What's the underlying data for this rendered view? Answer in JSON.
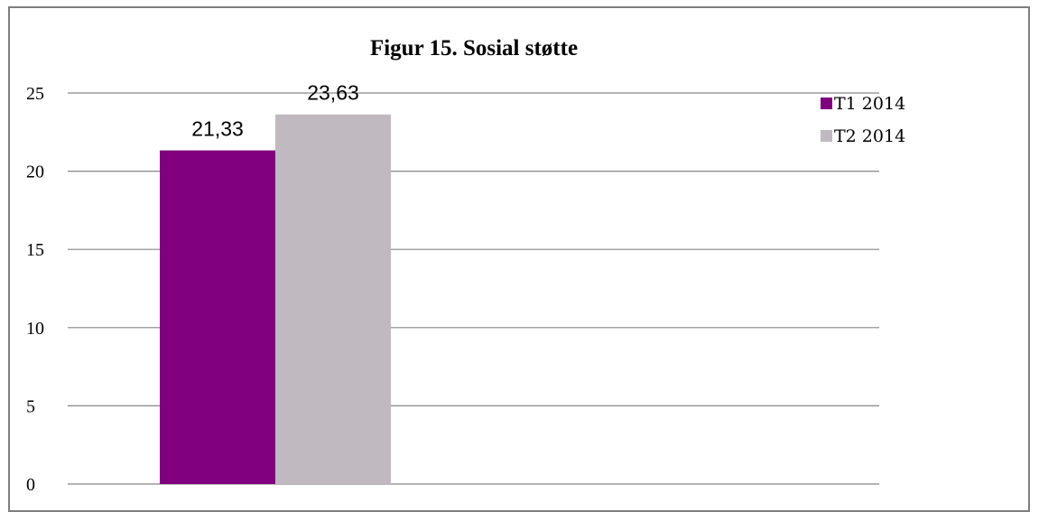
{
  "chart_data": {
    "type": "bar",
    "title": "Figur 15. Sosial støtte",
    "xlabel": "",
    "ylabel": "",
    "categories": [
      ""
    ],
    "ylim": [
      0,
      25
    ],
    "yticks": [
      "0",
      "5",
      "10",
      "15",
      "20",
      "25"
    ],
    "grid": true,
    "legend_position": "top-right",
    "series": [
      {
        "name": "T1 2014",
        "values": [
          21.33
        ],
        "label": "21,33",
        "color": "#800080"
      },
      {
        "name": "T2 2014",
        "values": [
          23.63
        ],
        "label": "23,63",
        "color": "#c0bac0"
      }
    ]
  }
}
